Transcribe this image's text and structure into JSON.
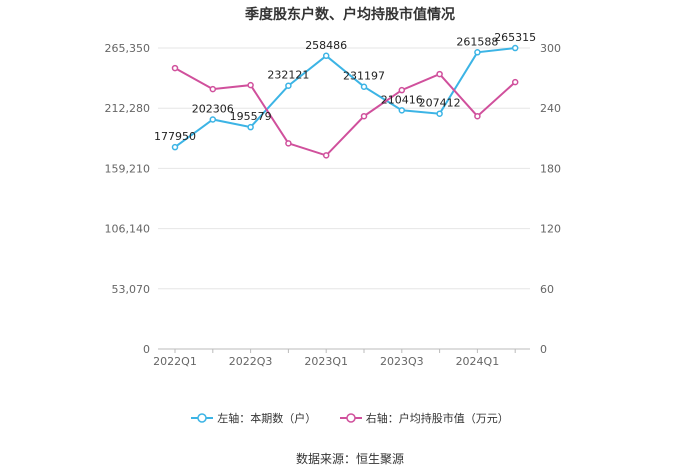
{
  "chart_data": {
    "type": "line",
    "title": "季度股东户数、户均持股市值情况",
    "categories": [
      "2022Q1",
      "2022Q2",
      "2022Q3",
      "2022Q4",
      "2023Q1",
      "2023Q2",
      "2023Q3",
      "2023Q4",
      "2024Q1",
      "2024Q2"
    ],
    "x_tick_labels": [
      "2022Q1",
      "2022Q3",
      "2023Q1",
      "2023Q3",
      "2024Q1"
    ],
    "left_axis": {
      "min": 0,
      "max": 265350,
      "ticks": [
        "0",
        "53,070",
        "106,140",
        "159,210",
        "212,280",
        "265,350"
      ]
    },
    "right_axis": {
      "min": 0,
      "max": 300,
      "ticks": [
        "0",
        "60",
        "120",
        "180",
        "240",
        "300"
      ]
    },
    "series": [
      {
        "name": "左轴：本期数（户）",
        "axis": "left",
        "color": "#3cb4e5",
        "values": [
          177950,
          202306,
          195579,
          232121,
          258486,
          231197,
          210416,
          207412,
          261588,
          265315
        ],
        "labels": [
          "177950",
          "202306",
          "195579",
          "232121",
          "258486",
          "231197",
          "210416",
          "207412",
          "261588",
          "265315"
        ]
      },
      {
        "name": "右轴：户均持股市值（万元）",
        "axis": "right",
        "color": "#d0509c",
        "values": [
          280,
          259,
          263,
          205,
          193,
          232,
          258,
          274,
          232,
          266
        ]
      }
    ],
    "grid": true,
    "legend_position": "bottom"
  },
  "source": "数据来源：恒生聚源"
}
